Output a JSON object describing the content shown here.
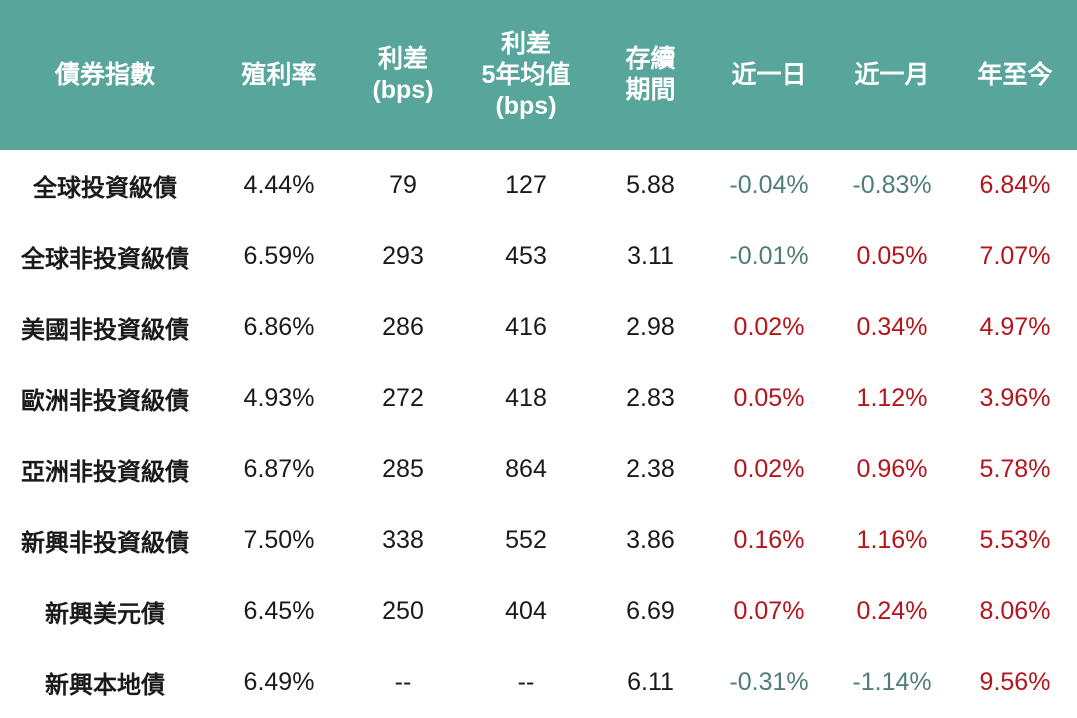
{
  "header": {
    "index": "債券指數",
    "yield": "殖利率",
    "spread_line1": "利差",
    "spread_line2": "(bps)",
    "spread5y_line1": "利差",
    "spread5y_line2": "5年均值",
    "spread5y_line3": "(bps)",
    "duration_line1": "存續",
    "duration_line2": "期間",
    "day": "近一日",
    "month": "近一月",
    "ytd": "年至今"
  },
  "rows": [
    {
      "name": "全球投資級債",
      "yield": "4.44%",
      "spread": "79",
      "spread5y": "127",
      "duration": "5.88",
      "day": "-0.04%",
      "month": "-0.83%",
      "ytd": "6.84%"
    },
    {
      "name": "全球非投資級債",
      "yield": "6.59%",
      "spread": "293",
      "spread5y": "453",
      "duration": "3.11",
      "day": "-0.01%",
      "month": "0.05%",
      "ytd": "7.07%"
    },
    {
      "name": "美國非投資級債",
      "yield": "6.86%",
      "spread": "286",
      "spread5y": "416",
      "duration": "2.98",
      "day": "0.02%",
      "month": "0.34%",
      "ytd": "4.97%"
    },
    {
      "name": "歐洲非投資級債",
      "yield": "4.93%",
      "spread": "272",
      "spread5y": "418",
      "duration": "2.83",
      "day": "0.05%",
      "month": "1.12%",
      "ytd": "3.96%"
    },
    {
      "name": "亞洲非投資級債",
      "yield": "6.87%",
      "spread": "285",
      "spread5y": "864",
      "duration": "2.38",
      "day": "0.02%",
      "month": "0.96%",
      "ytd": "5.78%"
    },
    {
      "name": "新興非投資級債",
      "yield": "7.50%",
      "spread": "338",
      "spread5y": "552",
      "duration": "3.86",
      "day": "0.16%",
      "month": "1.16%",
      "ytd": "5.53%"
    },
    {
      "name": "新興美元債",
      "yield": "6.45%",
      "spread": "250",
      "spread5y": "404",
      "duration": "6.69",
      "day": "0.07%",
      "month": "0.24%",
      "ytd": "8.06%"
    },
    {
      "name": "新興本地債",
      "yield": "6.49%",
      "spread": "--",
      "spread5y": "--",
      "duration": "6.11",
      "day": "-0.31%",
      "month": "-1.14%",
      "ytd": "9.56%"
    }
  ],
  "colors": {
    "header_bg": "#58a59c",
    "negative": "#4f7d78",
    "positive": "#b3151b"
  }
}
